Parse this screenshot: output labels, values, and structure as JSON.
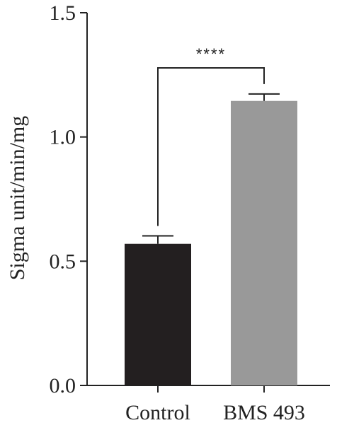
{
  "chart_data": {
    "type": "bar",
    "categories": [
      "Control",
      "BMS 493"
    ],
    "values": [
      0.57,
      1.145
    ],
    "errors": [
      0.032,
      0.028
    ],
    "bar_colors": [
      "#231f20",
      "#999999"
    ],
    "ylabel": "Sigma unit/min/mg",
    "xlabel": "",
    "title": "",
    "ylim": [
      0,
      1.5
    ],
    "yticks": [
      "0.0",
      "0.5",
      "1.0",
      "1.5"
    ],
    "significance": {
      "between": [
        0,
        1
      ],
      "label": "****"
    }
  }
}
